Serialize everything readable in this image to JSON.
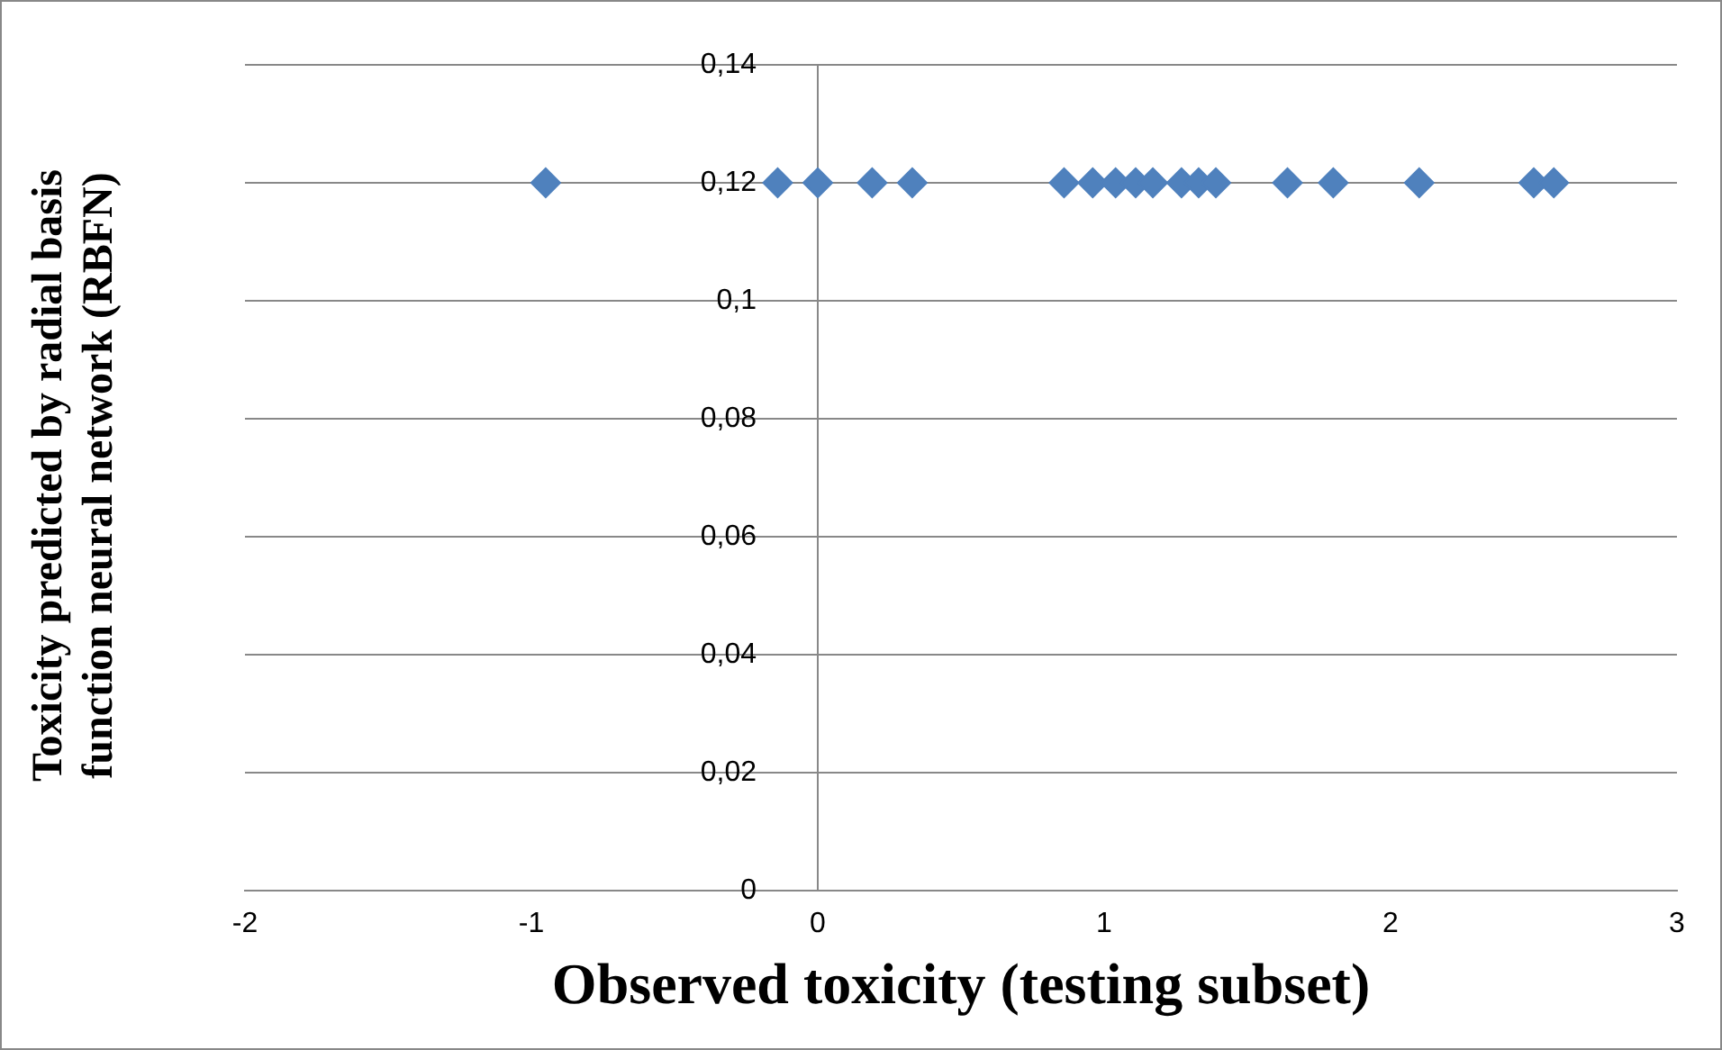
{
  "chart_data": {
    "type": "scatter",
    "xlabel": "Observed toxicity (testing subset)",
    "ylabel": "Toxicity predicted by radial basis function neural network (RBFN)",
    "series": [
      {
        "color": "#4f81bd",
        "x": [
          -0.95,
          -0.14,
          0,
          0.19,
          0.33,
          0.86,
          0.96,
          1.04,
          1.11,
          1.17,
          1.27,
          1.33,
          1.39,
          1.64,
          1.8,
          2.1,
          2.5,
          2.57
        ],
        "values": [
          0.12,
          0.12,
          0.12,
          0.12,
          0.12,
          0.12,
          0.12,
          0.12,
          0.12,
          0.12,
          0.12,
          0.12,
          0.12,
          0.12,
          0.12,
          0.12,
          0.12,
          0.12
        ]
      }
    ],
    "xlim": [
      -2,
      3
    ],
    "xticks": [
      -2,
      -1,
      0,
      1,
      2,
      3
    ],
    "ylim": [
      0,
      0.14
    ],
    "yticks": [
      0,
      {
        "value": 0.02,
        "label": "0,02"
      },
      {
        "value": 0.04,
        "label": "0,04"
      },
      {
        "value": 0.06,
        "label": "0,06"
      },
      {
        "value": 0.08,
        "label": "0,08"
      },
      {
        "value": 0.1,
        "label": "0,1"
      },
      {
        "value": 0.12,
        "label": "0,12"
      },
      {
        "value": 0.14,
        "label": "0,14"
      }
    ],
    "grid": "y",
    "legend": false,
    "marker": "diamond"
  }
}
